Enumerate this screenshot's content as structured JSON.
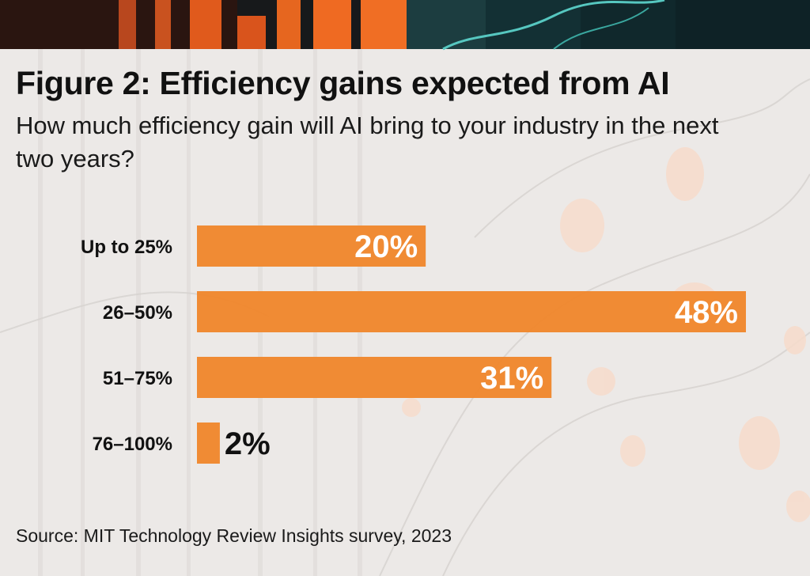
{
  "title": "Figure 2: Efficiency gains expected from AI",
  "subtitle": "How much efficiency gain will AI bring to your industry in the next two years?",
  "source": "Source: MIT Technology Review Insights survey, 2023",
  "colors": {
    "bar": "#f0862a",
    "value_inside": "#ffffff",
    "value_outside": "#111111",
    "label": "#111111"
  },
  "chart_data": {
    "type": "bar",
    "orientation": "horizontal",
    "categories": [
      "Up to 25%",
      "26–50%",
      "51–75%",
      "76–100%"
    ],
    "values": [
      20,
      48,
      31,
      2
    ],
    "data_labels": [
      "20%",
      "48%",
      "31%",
      "2%"
    ],
    "unit": "%",
    "xlim": [
      0,
      48
    ],
    "title": "Figure 2: Efficiency gains expected from AI",
    "xlabel": "",
    "ylabel": "",
    "grid": false
  }
}
